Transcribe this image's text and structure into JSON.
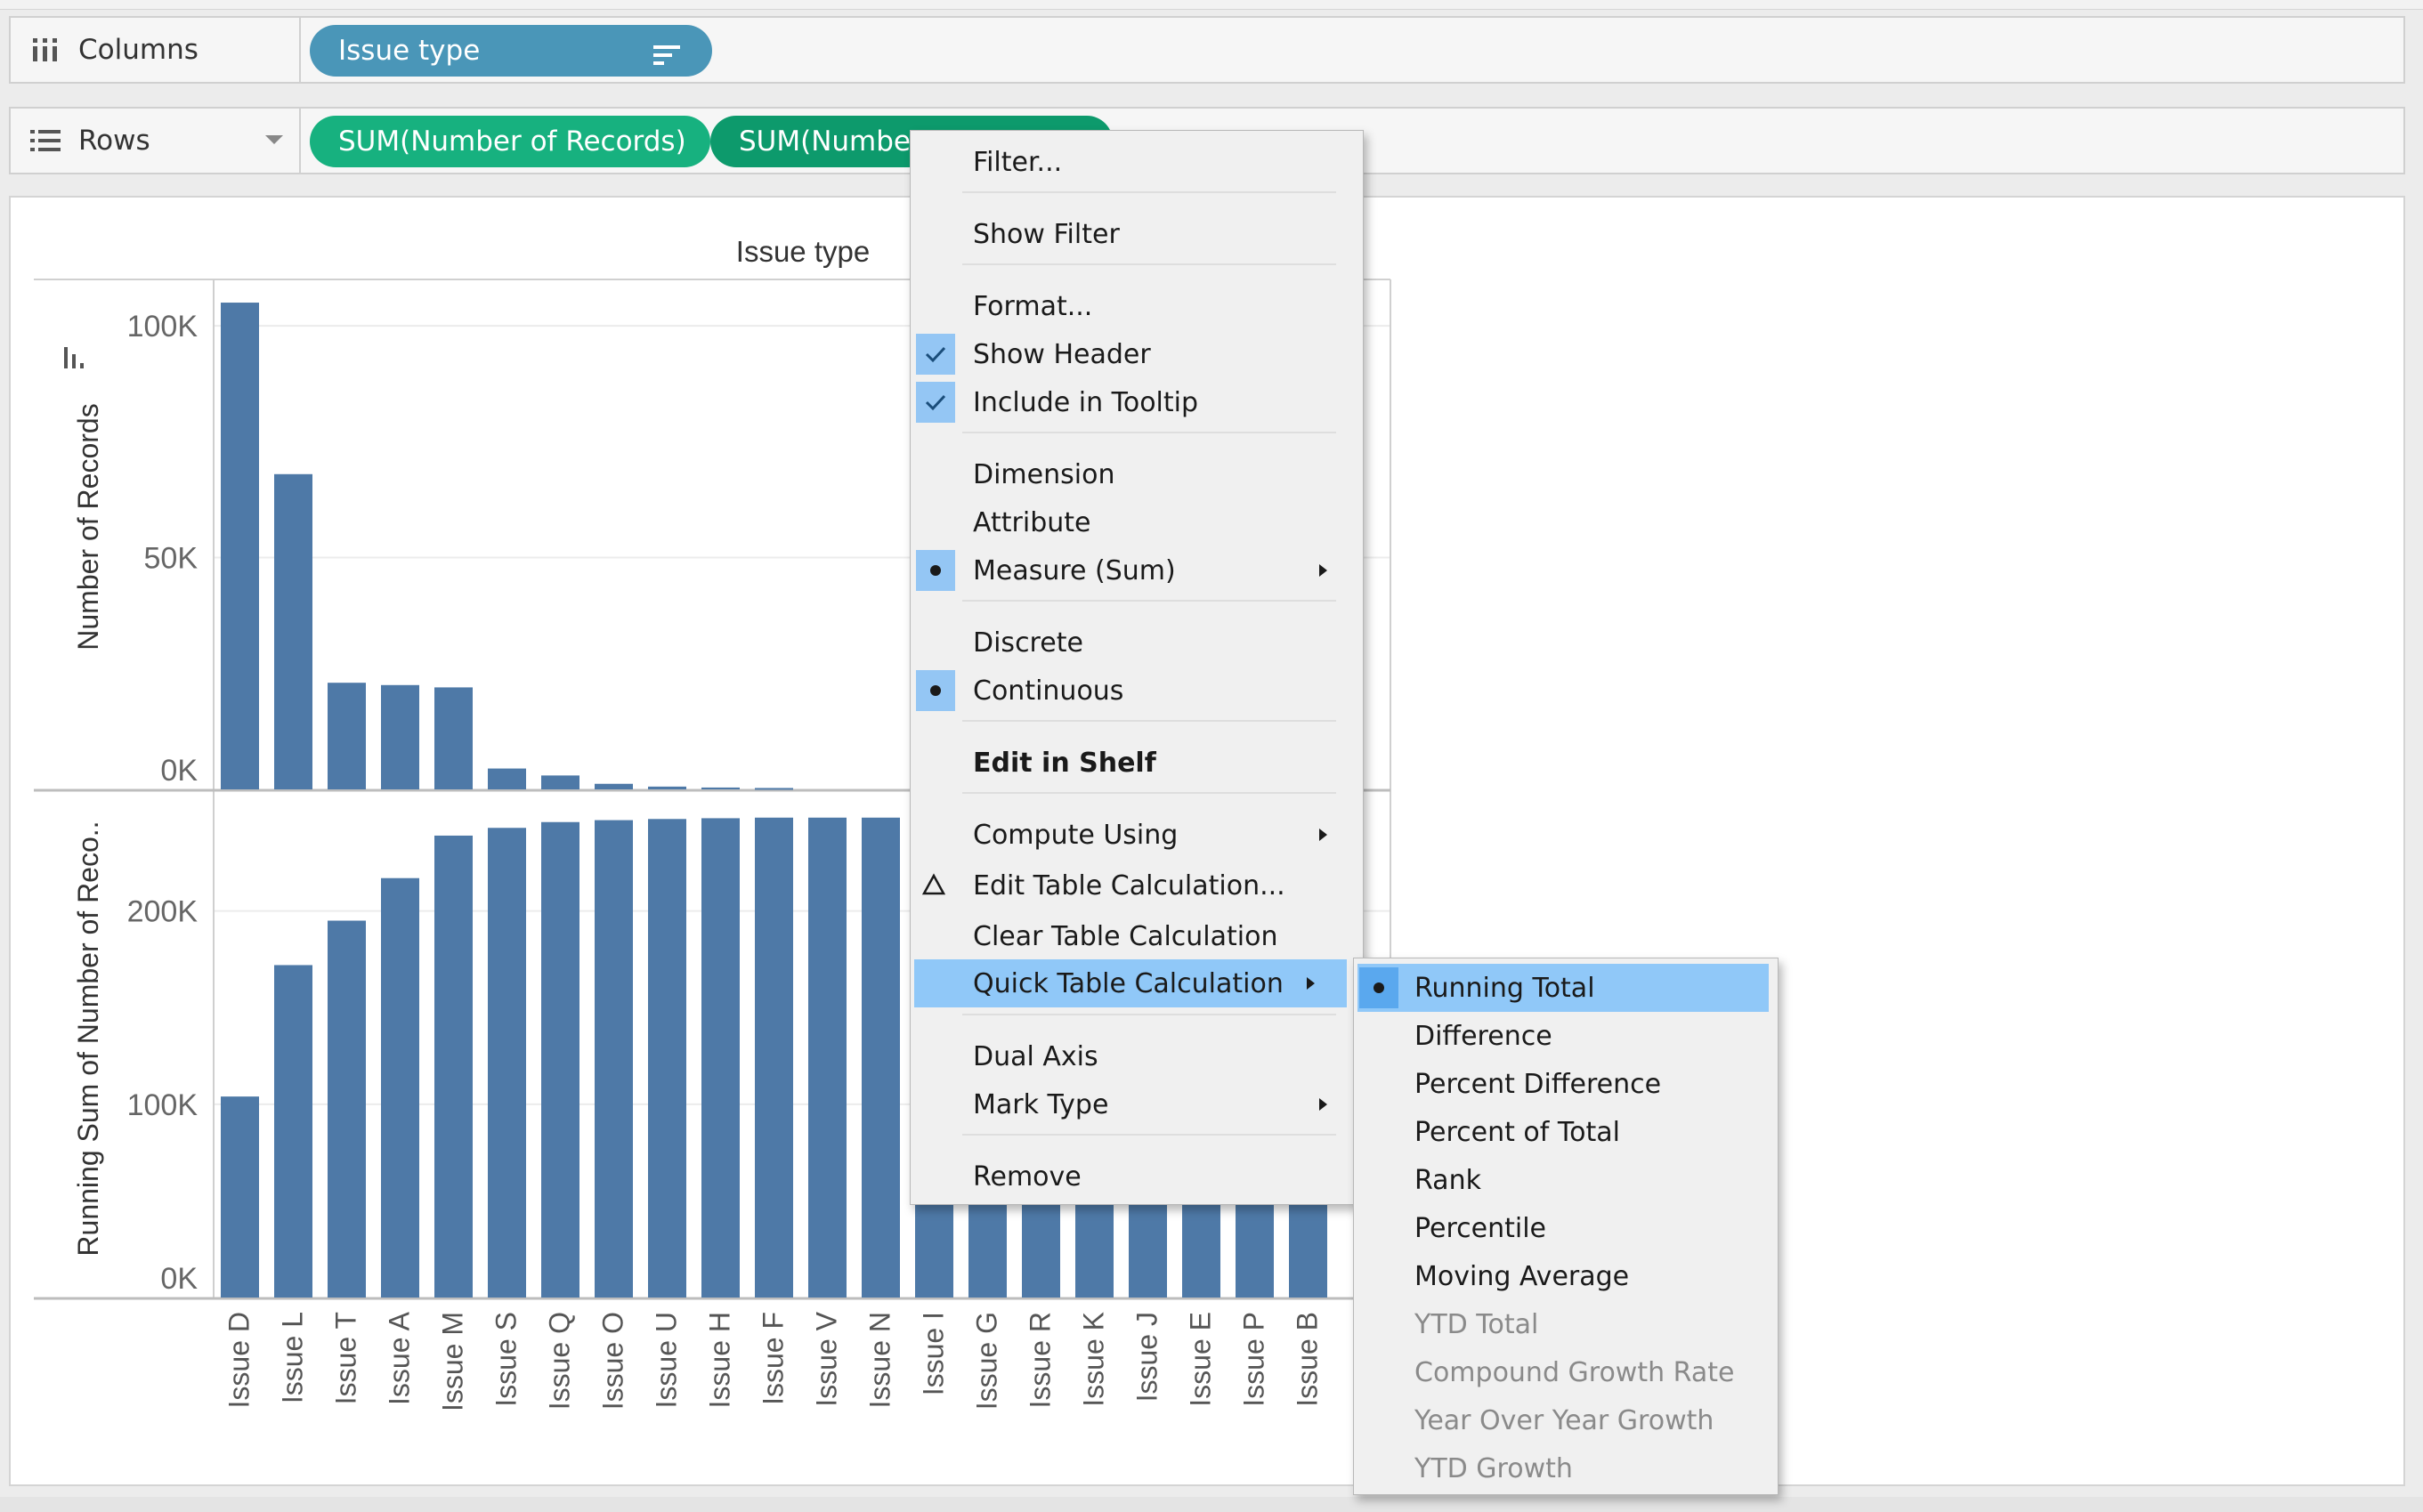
{
  "shelves": {
    "columns": {
      "label": "Columns",
      "pills": [
        "Issue type"
      ]
    },
    "rows": {
      "label": "Rows",
      "pills": [
        "SUM(Number of Records)",
        "SUM(Number"
      ]
    }
  },
  "colors": {
    "bar": "#4e79a7",
    "pill_blue": "#4a96b8",
    "pill_green": "#17b17f",
    "pill_green_dark": "#0d9a6c",
    "menu_highlight": "#90c8f8"
  },
  "icons": {
    "columns": "columns-shelf-icon",
    "rows": "rows-shelf-icon",
    "sort": "sort-descending-icon",
    "axis_sort": "bar-sort-icon",
    "check": "checkmark-icon",
    "bullet": "radio-bullet-icon",
    "submenu": "submenu-arrow-icon",
    "delta": "delta-icon"
  },
  "chart_data": {
    "type": "bar",
    "title": "Issue type",
    "categories": [
      "Issue D",
      "Issue L",
      "Issue T",
      "Issue A",
      "Issue M",
      "Issue S",
      "Issue Q",
      "Issue O",
      "Issue U",
      "Issue H",
      "Issue F",
      "Issue V",
      "Issue N",
      "Issue I",
      "Issue G",
      "Issue R",
      "Issue K",
      "Issue J",
      "Issue E",
      "Issue P",
      "Issue B"
    ],
    "panes": [
      {
        "name": "Number of Records",
        "ylabel": "Number of Records",
        "ylim": [
          0,
          110000
        ],
        "ticks": [
          "100K",
          "50K",
          "0K"
        ],
        "values": [
          105000,
          68000,
          23000,
          22500,
          22000,
          4500,
          3000,
          1200,
          600,
          400,
          300,
          null,
          null,
          null,
          null,
          null,
          null,
          null,
          null,
          null,
          null
        ]
      },
      {
        "name": "Running Sum of Number of Records",
        "ylabel": "Running Sum of Number of Reco..",
        "ylim": [
          0,
          262000
        ],
        "ticks": [
          "200K",
          "100K",
          "0K"
        ],
        "values": [
          104000,
          172000,
          195000,
          217000,
          239000,
          243000,
          246000,
          247000,
          247600,
          248000,
          248300,
          248300,
          248300,
          248300,
          248300,
          248300,
          248300,
          248300,
          248300,
          248300,
          248300
        ]
      }
    ],
    "grid": true,
    "legend": "none"
  },
  "context_menu": {
    "items": [
      {
        "label": "Filter...",
        "mark": "none",
        "submenu": false
      },
      {
        "label": "Show Filter",
        "mark": "none",
        "submenu": false
      },
      {
        "label": "Format...",
        "mark": "none",
        "submenu": false
      },
      {
        "label": "Show Header",
        "mark": "check",
        "submenu": false
      },
      {
        "label": "Include in Tooltip",
        "mark": "check",
        "submenu": false
      },
      {
        "label": "Dimension",
        "mark": "none",
        "submenu": false
      },
      {
        "label": "Attribute",
        "mark": "none",
        "submenu": false
      },
      {
        "label": "Measure (Sum)",
        "mark": "bullet",
        "submenu": true
      },
      {
        "label": "Discrete",
        "mark": "none",
        "submenu": false
      },
      {
        "label": "Continuous",
        "mark": "bullet",
        "submenu": false
      },
      {
        "label": "Edit in Shelf",
        "mark": "none",
        "submenu": false,
        "bold": true
      },
      {
        "label": "Compute Using",
        "mark": "none",
        "submenu": true
      },
      {
        "label": "Edit Table Calculation...",
        "mark": "delta",
        "submenu": false
      },
      {
        "label": "Clear Table Calculation",
        "mark": "none",
        "submenu": false
      },
      {
        "label": "Quick Table Calculation",
        "mark": "none",
        "submenu": true,
        "highlighted": true
      },
      {
        "label": "Dual Axis",
        "mark": "none",
        "submenu": false
      },
      {
        "label": "Mark Type",
        "mark": "none",
        "submenu": true
      },
      {
        "label": "Remove",
        "mark": "none",
        "submenu": false
      }
    ]
  },
  "submenu": {
    "items": [
      {
        "label": "Running Total",
        "selected": true,
        "enabled": true
      },
      {
        "label": "Difference",
        "selected": false,
        "enabled": true
      },
      {
        "label": "Percent Difference",
        "selected": false,
        "enabled": true
      },
      {
        "label": "Percent of Total",
        "selected": false,
        "enabled": true
      },
      {
        "label": "Rank",
        "selected": false,
        "enabled": true
      },
      {
        "label": "Percentile",
        "selected": false,
        "enabled": true
      },
      {
        "label": "Moving Average",
        "selected": false,
        "enabled": true
      },
      {
        "label": "YTD Total",
        "selected": false,
        "enabled": false
      },
      {
        "label": "Compound Growth Rate",
        "selected": false,
        "enabled": false
      },
      {
        "label": "Year Over Year Growth",
        "selected": false,
        "enabled": false
      },
      {
        "label": "YTD Growth",
        "selected": false,
        "enabled": false
      }
    ]
  }
}
